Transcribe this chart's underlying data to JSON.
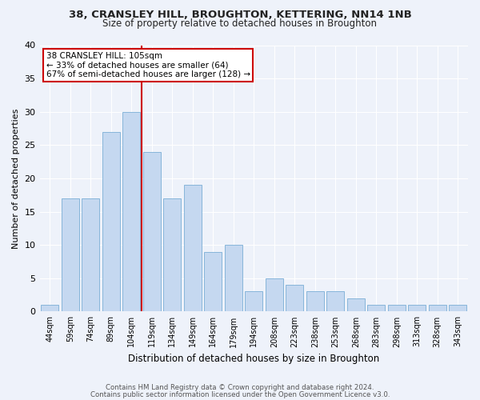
{
  "title": "38, CRANSLEY HILL, BROUGHTON, KETTERING, NN14 1NB",
  "subtitle": "Size of property relative to detached houses in Broughton",
  "xlabel": "Distribution of detached houses by size in Broughton",
  "ylabel": "Number of detached properties",
  "categories": [
    "44sqm",
    "59sqm",
    "74sqm",
    "89sqm",
    "104sqm",
    "119sqm",
    "134sqm",
    "149sqm",
    "164sqm",
    "179sqm",
    "194sqm",
    "208sqm",
    "223sqm",
    "238sqm",
    "253sqm",
    "268sqm",
    "283sqm",
    "298sqm",
    "313sqm",
    "328sqm",
    "343sqm"
  ],
  "values": [
    1,
    17,
    17,
    27,
    30,
    24,
    17,
    19,
    9,
    10,
    3,
    5,
    4,
    3,
    3,
    2,
    1,
    1,
    1,
    1,
    1
  ],
  "bar_color": "#c5d8f0",
  "bar_edgecolor": "#7aaed6",
  "vline_color": "#cc0000",
  "vline_index": 4,
  "annotation_text": "38 CRANSLEY HILL: 105sqm\n← 33% of detached houses are smaller (64)\n67% of semi-detached houses are larger (128) →",
  "annotation_box_facecolor": "#ffffff",
  "annotation_box_edgecolor": "#cc0000",
  "ylim": [
    0,
    40
  ],
  "yticks": [
    0,
    5,
    10,
    15,
    20,
    25,
    30,
    35,
    40
  ],
  "footer1": "Contains HM Land Registry data © Crown copyright and database right 2024.",
  "footer2": "Contains public sector information licensed under the Open Government Licence v3.0.",
  "bg_color": "#eef2fa",
  "grid_color": "#ffffff",
  "title_fontsize": 9.5,
  "subtitle_fontsize": 8.5
}
